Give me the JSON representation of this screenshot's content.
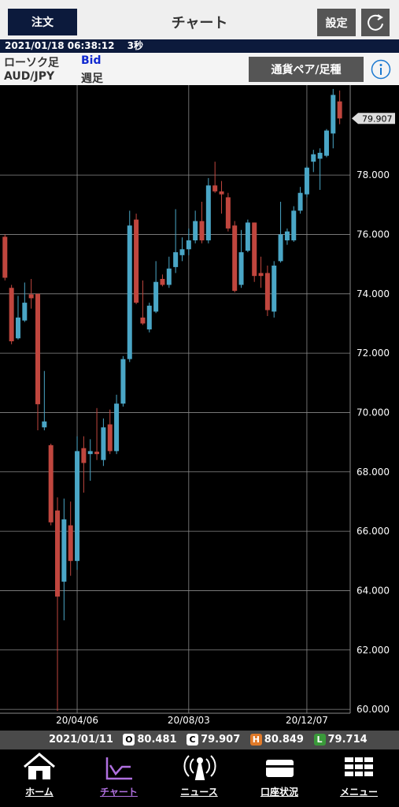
{
  "header": {
    "order_button": "注文",
    "title": "チャート",
    "settings_button": "設定"
  },
  "status": {
    "datetime": "2021/01/18 06:38:12",
    "interval": "3秒"
  },
  "info": {
    "chart_kind": "ローソク足",
    "price_side": "Bid",
    "pair": "AUD/JPY",
    "period": "週足",
    "pair_button": "通貨ペア/足種"
  },
  "chart_data": {
    "type": "candlestick",
    "price_label": "79.907",
    "categories": [
      null,
      null,
      null,
      null,
      null,
      null,
      null,
      null,
      null,
      null,
      null,
      "20/04/06",
      null,
      null,
      null,
      null,
      null,
      null,
      null,
      null,
      null,
      null,
      null,
      null,
      null,
      null,
      null,
      null,
      "20/08/03",
      null,
      null,
      null,
      null,
      null,
      null,
      null,
      null,
      null,
      null,
      null,
      null,
      null,
      null,
      null,
      null,
      null,
      "20/12/07",
      null,
      null,
      null,
      null,
      null
    ],
    "open": [
      75.92,
      74.2,
      72.5,
      73.1,
      73.98,
      74.0,
      69.5,
      68.9,
      66.7,
      64.3,
      66.2,
      65.0,
      68.8,
      68.6,
      68.68,
      68.4,
      69.6,
      68.7,
      70.3,
      71.8,
      76.5,
      73.2,
      72.8,
      73.4,
      74.5,
      74.3,
      74.9,
      75.3,
      75.5,
      75.8,
      76.45,
      75.8,
      77.65,
      77.45,
      77.25,
      76.3,
      74.3,
      75.45,
      76.4,
      74.7,
      74.7,
      73.4,
      75.1,
      75.8,
      75.8,
      76.8,
      77.35,
      78.45,
      78.55,
      78.65,
      79.4,
      80.481
    ],
    "high": [
      76.0,
      74.3,
      73.93,
      74.38,
      74.5,
      74.0,
      71.4,
      68.95,
      67.14,
      67.1,
      67.0,
      69.2,
      69.2,
      69.1,
      70.15,
      69.8,
      70.1,
      70.6,
      71.9,
      76.8,
      76.7,
      74.45,
      73.7,
      75.1,
      74.65,
      75.25,
      76.85,
      75.9,
      76.2,
      76.8,
      77.1,
      77.9,
      78.45,
      77.8,
      77.4,
      76.45,
      76.15,
      76.5,
      76.4,
      75.25,
      74.95,
      75.1,
      77.1,
      76.2,
      76.95,
      77.6,
      78.3,
      78.85,
      78.9,
      79.55,
      80.9,
      80.849
    ],
    "low": [
      74.45,
      72.3,
      72.46,
      73.05,
      73.5,
      69.4,
      69.4,
      66.2,
      59.95,
      63.0,
      64.5,
      64.7,
      67.3,
      67.7,
      68.4,
      68.2,
      68.6,
      68.6,
      70.2,
      71.7,
      73.65,
      72.95,
      72.7,
      73.35,
      74.25,
      74.2,
      74.7,
      75.1,
      75.3,
      75.7,
      75.7,
      75.7,
      77.4,
      76.7,
      76.1,
      74.05,
      74.2,
      75.4,
      74.4,
      74.2,
      73.25,
      73.2,
      75.05,
      75.65,
      75.75,
      76.7,
      77.25,
      78.1,
      77.5,
      78.6,
      78.9,
      79.714
    ],
    "close": [
      74.54,
      72.4,
      73.2,
      73.7,
      73.85,
      70.28,
      69.7,
      66.3,
      63.8,
      66.4,
      65.0,
      68.7,
      68.3,
      68.7,
      68.6,
      69.5,
      68.7,
      70.3,
      71.8,
      76.3,
      73.7,
      73.0,
      73.6,
      74.4,
      74.3,
      74.85,
      75.4,
      75.5,
      75.8,
      76.45,
      75.8,
      77.65,
      77.45,
      77.35,
      76.2,
      74.1,
      75.4,
      76.4,
      74.6,
      74.6,
      73.45,
      74.95,
      76.0,
      76.1,
      76.8,
      77.4,
      78.25,
      78.7,
      78.75,
      79.5,
      80.7,
      79.907
    ],
    "up_color": "#4aa6c6",
    "down_color": "#c0463e",
    "ylim": [
      59.87,
      81.03
    ],
    "yticks": [
      {
        "value": 60,
        "label": "60.000"
      },
      {
        "value": 62,
        "label": "62.000"
      },
      {
        "value": 64,
        "label": "64.000"
      },
      {
        "value": 66,
        "label": "66.000"
      },
      {
        "value": 68,
        "label": "68.000"
      },
      {
        "value": 70,
        "label": "70.000"
      },
      {
        "value": 72,
        "label": "72.000"
      },
      {
        "value": 74,
        "label": "74.000"
      },
      {
        "value": 76,
        "label": "76.000"
      },
      {
        "value": 78,
        "label": "78.000"
      }
    ],
    "grid": true
  },
  "ohlc_bar": {
    "date": "2021/01/11",
    "open_tag": "O",
    "open": "80.481",
    "close_tag": "C",
    "close": "79.907",
    "high_tag": "H",
    "high": "80.849",
    "low_tag": "L",
    "low": "79.714"
  },
  "nav": [
    {
      "label": "ホーム"
    },
    {
      "label": "チャート"
    },
    {
      "label": "ニュース"
    },
    {
      "label": "口座状況"
    },
    {
      "label": "メニュー"
    }
  ]
}
